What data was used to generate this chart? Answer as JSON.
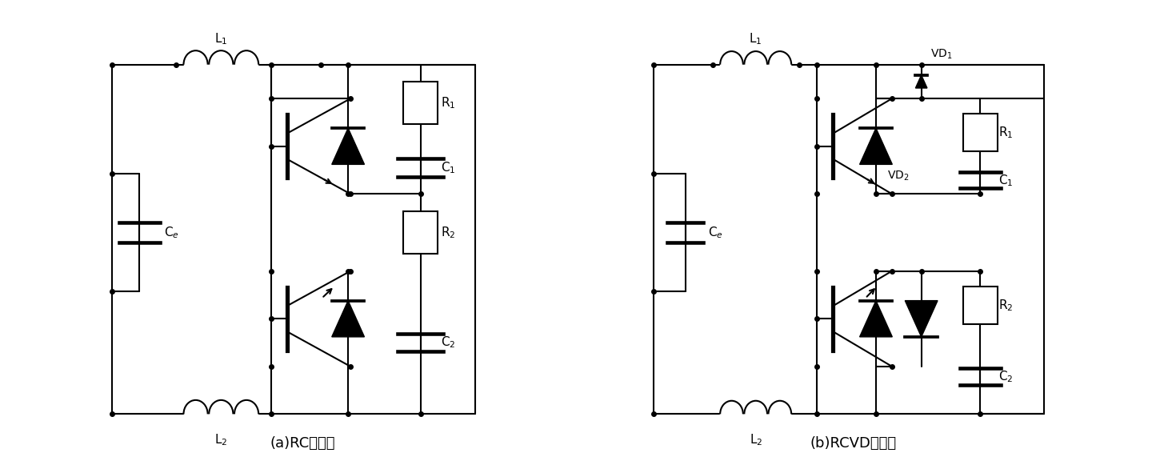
{
  "background_color": "#ffffff",
  "line_color": "#000000",
  "line_width": 1.5,
  "dot_size": 4,
  "label_a": "(a)RC吸收型",
  "label_b": "(b)RCVD吸收型",
  "label_fontsize": 13,
  "component_fontsize": 11,
  "sub_fontsize": 9
}
